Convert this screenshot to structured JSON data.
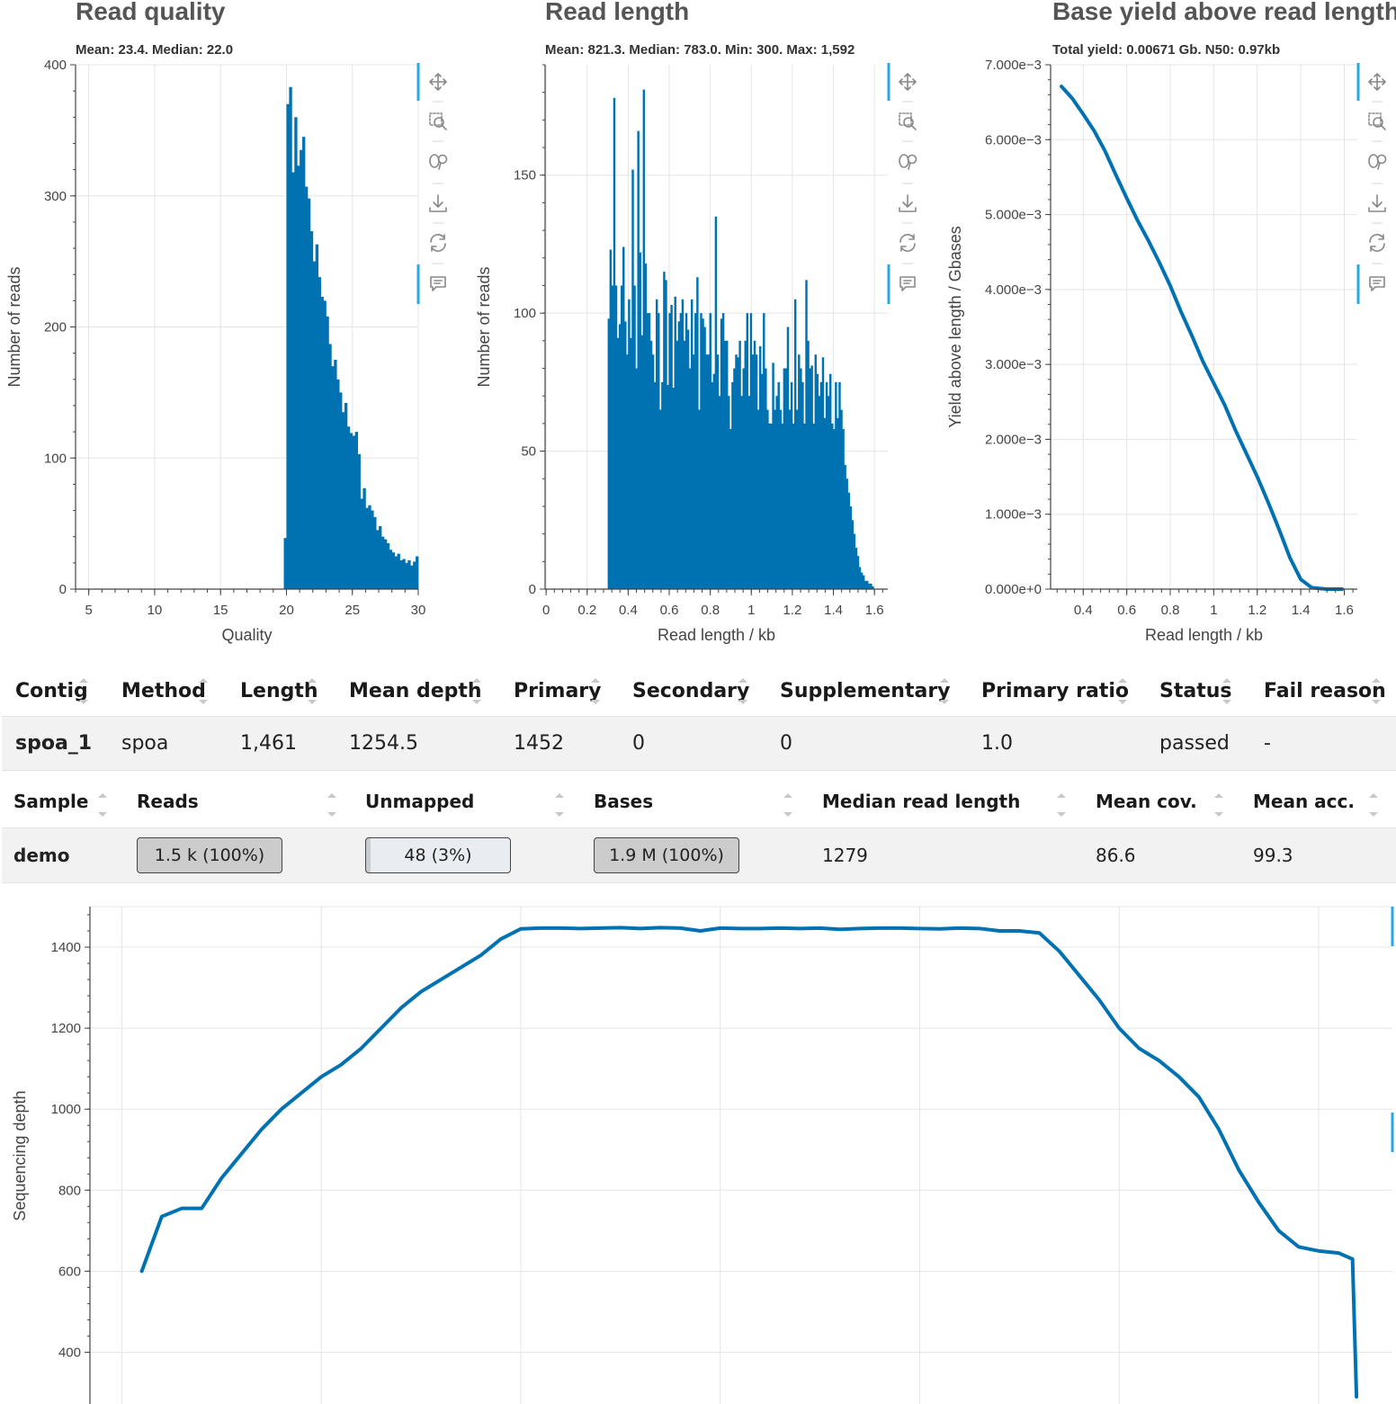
{
  "colors": {
    "series": "#0072b2",
    "grid": "#e5e5e5",
    "axis": "#444444",
    "toolbar_accent": "#26aae1"
  },
  "toolbar_icons": [
    "pan-icon",
    "box-zoom-icon",
    "wheel-zoom-icon",
    "save-icon",
    "reset-icon",
    "hover-icon"
  ],
  "chart_data": [
    {
      "id": "quality",
      "type": "bar",
      "title": "Read quality",
      "subtitle": "Mean: 23.4. Median: 22.0",
      "xlabel": "Quality",
      "ylabel": "Number of reads",
      "xlim": [
        4,
        30
      ],
      "ylim": [
        0,
        400
      ],
      "xticks": [
        5,
        10,
        15,
        20,
        25,
        30
      ],
      "yticks": [
        0,
        100,
        200,
        300,
        400
      ],
      "x": [
        19.9,
        20.1,
        20.3,
        20.5,
        20.7,
        20.9,
        21.1,
        21.3,
        21.5,
        21.7,
        21.9,
        22.1,
        22.3,
        22.5,
        22.7,
        22.9,
        23.1,
        23.3,
        23.5,
        23.7,
        23.9,
        24.1,
        24.3,
        24.5,
        24.7,
        24.9,
        25.1,
        25.3,
        25.5,
        25.7,
        25.9,
        26.1,
        26.3,
        26.5,
        26.7,
        26.9,
        27.1,
        27.3,
        27.5,
        27.7,
        27.9,
        28.1,
        28.3,
        28.5,
        28.7,
        28.9,
        29.1,
        29.3,
        29.5,
        29.7,
        29.9
      ],
      "values": [
        39,
        370,
        383,
        318,
        360,
        323,
        335,
        345,
        307,
        298,
        273,
        250,
        263,
        238,
        223,
        220,
        208,
        187,
        170,
        175,
        160,
        150,
        135,
        142,
        124,
        119,
        117,
        120,
        103,
        69,
        77,
        62,
        64,
        60,
        55,
        45,
        48,
        40,
        38,
        35,
        30,
        28,
        25,
        27,
        22,
        23,
        20,
        22,
        18,
        21,
        25
      ],
      "bin_width": 0.2
    },
    {
      "id": "length",
      "type": "bar",
      "title": "Read length",
      "subtitle": "Mean: 821.3. Median: 783.0. Min: 300. Max: 1,592",
      "xlabel": "Read length / kb",
      "ylabel": "Number of reads",
      "xlim": [
        -0.005,
        1.665
      ],
      "ylim": [
        0,
        190
      ],
      "xticks": [
        0,
        0.2,
        0.4,
        0.6,
        0.8,
        1,
        1.2,
        1.4,
        1.6
      ],
      "yticks": [
        0,
        50,
        100,
        150
      ],
      "x": [
        0.3045,
        0.3135,
        0.3225,
        0.3315,
        0.3405,
        0.3495,
        0.3585,
        0.3675,
        0.3765,
        0.3855,
        0.3945,
        0.4035,
        0.4125,
        0.4215,
        0.4305,
        0.4395,
        0.4485,
        0.4575,
        0.4665,
        0.4755,
        0.4845,
        0.4935,
        0.5025,
        0.5115,
        0.5205,
        0.5295,
        0.5385,
        0.5475,
        0.5565,
        0.5655,
        0.5745,
        0.5835,
        0.5925,
        0.6015,
        0.6105,
        0.6195,
        0.6285,
        0.6375,
        0.6465,
        0.6555,
        0.6645,
        0.6735,
        0.6825,
        0.6915,
        0.7005,
        0.7095,
        0.7185,
        0.7275,
        0.7365,
        0.7455,
        0.7545,
        0.7635,
        0.7725,
        0.7815,
        0.7905,
        0.7995,
        0.8085,
        0.8175,
        0.8265,
        0.8355,
        0.8445,
        0.8535,
        0.8625,
        0.8715,
        0.8805,
        0.8895,
        0.8985,
        0.9075,
        0.9165,
        0.9255,
        0.9345,
        0.9435,
        0.9525,
        0.9615,
        0.9705,
        0.9795,
        0.9885,
        0.9975,
        1.0065,
        1.0155,
        1.0245,
        1.0335,
        1.0425,
        1.0515,
        1.0605,
        1.0695,
        1.0785,
        1.0875,
        1.0965,
        1.1055,
        1.1145,
        1.1235,
        1.1325,
        1.1415,
        1.1505,
        1.1595,
        1.1685,
        1.1775,
        1.1865,
        1.1955,
        1.2045,
        1.2135,
        1.2225,
        1.2315,
        1.2405,
        1.2495,
        1.2585,
        1.2675,
        1.2765,
        1.2855,
        1.2945,
        1.3035,
        1.3125,
        1.3215,
        1.3305,
        1.3395,
        1.3485,
        1.3575,
        1.3665,
        1.3755,
        1.3845,
        1.3935,
        1.4025,
        1.4115,
        1.4205,
        1.4295,
        1.4385,
        1.4475,
        1.4565,
        1.4655,
        1.4745,
        1.4835,
        1.4925,
        1.5015,
        1.5105,
        1.5195,
        1.5285,
        1.5375,
        1.5465,
        1.5555,
        1.5645,
        1.5735,
        1.5825,
        1.5915
      ],
      "values": [
        98,
        123,
        110,
        178,
        110,
        91,
        96,
        110,
        124,
        97,
        85,
        105,
        91,
        152,
        110,
        80,
        166,
        122,
        92,
        181,
        118,
        100,
        100,
        90,
        85,
        75,
        105,
        100,
        65,
        75,
        115,
        112,
        74,
        100,
        103,
        73,
        106,
        90,
        97,
        100,
        105,
        90,
        100,
        94,
        80,
        105,
        85,
        100,
        113,
        65,
        100,
        98,
        95,
        85,
        85,
        100,
        75,
        78,
        135,
        85,
        70,
        98,
        100,
        90,
        90,
        70,
        58,
        75,
        80,
        85,
        84,
        90,
        70,
        80,
        90,
        100,
        70,
        100,
        85,
        90,
        85,
        65,
        88,
        78,
        100,
        80,
        65,
        60,
        60,
        82,
        65,
        70,
        75,
        65,
        60,
        80,
        80,
        95,
        65,
        75,
        60,
        105,
        65,
        85,
        80,
        75,
        60,
        112,
        90,
        80,
        81,
        60,
        85,
        78,
        70,
        75,
        84,
        62,
        75,
        70,
        78,
        60,
        58,
        75,
        62,
        75,
        65,
        58,
        45,
        40,
        35,
        30,
        25,
        20,
        15,
        12,
        8,
        6,
        5,
        3,
        3,
        2,
        2,
        1
      ]
    },
    {
      "id": "yield",
      "type": "line",
      "title": "Base yield above read length",
      "subtitle": "Total yield: 0.00671 Gb.  N50: 0.97kb",
      "xlabel": "Read length / kb",
      "ylabel": "Yield above length / Gbases",
      "xlim": [
        0.25,
        1.66
      ],
      "ylim": [
        0,
        0.007
      ],
      "xticks": [
        0.4,
        0.6,
        0.8,
        1,
        1.2,
        1.4,
        1.6
      ],
      "ytick_values": [
        0,
        0.001,
        0.002,
        0.003,
        0.004,
        0.005,
        0.006,
        0.007
      ],
      "ytick_labels": [
        "0.000e+0",
        "1.000e−3",
        "2.000e−3",
        "3.000e−3",
        "4.000e−3",
        "5.000e−3",
        "6.000e−3",
        "7.000e−3"
      ],
      "x": [
        0.3,
        0.35,
        0.4,
        0.45,
        0.5,
        0.55,
        0.6,
        0.65,
        0.7,
        0.75,
        0.8,
        0.85,
        0.9,
        0.95,
        1.0,
        1.05,
        1.1,
        1.15,
        1.2,
        1.25,
        1.3,
        1.35,
        1.4,
        1.45,
        1.48,
        1.52,
        1.56,
        1.59
      ],
      "y": [
        0.00671,
        0.00655,
        0.00634,
        0.00612,
        0.00585,
        0.00553,
        0.00522,
        0.00492,
        0.00465,
        0.00436,
        0.00405,
        0.0037,
        0.00338,
        0.00304,
        0.00275,
        0.00246,
        0.00212,
        0.00181,
        0.0015,
        0.00116,
        0.0008,
        0.00042,
        0.00013,
        2e-05,
        1e-05,
        0.0,
        0.0,
        0.0
      ]
    },
    {
      "id": "depth",
      "type": "line",
      "title": "",
      "xlabel": "",
      "ylabel": "Sequencing depth",
      "xlim": [
        -80,
        3185
      ],
      "ylim": [
        270,
        1500
      ],
      "yticks": [
        400,
        600,
        800,
        1000,
        1200,
        1400
      ],
      "x": [
        50,
        100,
        150,
        200,
        250,
        300,
        350,
        400,
        450,
        500,
        550,
        600,
        650,
        700,
        750,
        800,
        850,
        900,
        950,
        1000,
        1050,
        1100,
        1150,
        1200,
        1250,
        1300,
        1350,
        1400,
        1450,
        1500,
        1550,
        1600,
        1650,
        1700,
        1750,
        1800,
        1850,
        1900,
        1950,
        2000,
        2050,
        2100,
        2150,
        2200,
        2250,
        2300,
        2350,
        2400,
        2450,
        2500,
        2550,
        2600,
        2650,
        2700,
        2750,
        2800,
        2850,
        2900,
        2950,
        3000,
        3050,
        3085,
        3095
      ],
      "y": [
        600,
        735,
        755,
        755,
        830,
        890,
        950,
        1000,
        1040,
        1080,
        1110,
        1150,
        1200,
        1250,
        1290,
        1320,
        1350,
        1380,
        1420,
        1445,
        1447,
        1447,
        1446,
        1447,
        1448,
        1446,
        1448,
        1447,
        1440,
        1447,
        1446,
        1446,
        1447,
        1446,
        1447,
        1444,
        1446,
        1447,
        1447,
        1446,
        1445,
        1447,
        1446,
        1440,
        1440,
        1435,
        1390,
        1330,
        1270,
        1200,
        1150,
        1120,
        1080,
        1030,
        950,
        850,
        770,
        700,
        660,
        650,
        645,
        630,
        290
      ]
    }
  ],
  "contig_table": {
    "headers": [
      "Contig",
      "Method",
      "Length",
      "Mean depth",
      "Primary",
      "Secondary",
      "Supplementary",
      "Primary ratio",
      "Status",
      "Fail reason"
    ],
    "rows": [
      [
        "spoa_1",
        "spoa",
        "1,461",
        "1254.5",
        "1452",
        "0",
        "0",
        "1.0",
        "passed",
        "-"
      ]
    ]
  },
  "sample_table": {
    "headers": [
      "Sample",
      "Reads",
      "Unmapped",
      "Bases",
      "Median read length",
      "Mean cov.",
      "Mean acc."
    ],
    "rows": [
      {
        "sample": "demo",
        "reads": "1.5 k (100%)",
        "reads_fill": 1.0,
        "unmapped": "48 (3%)",
        "unmapped_fill": 0.03,
        "bases": "1.9 M (100%)",
        "bases_fill": 1.0,
        "median_read_length": "1279",
        "mean_cov": "86.6",
        "mean_acc": "99.3"
      }
    ]
  }
}
